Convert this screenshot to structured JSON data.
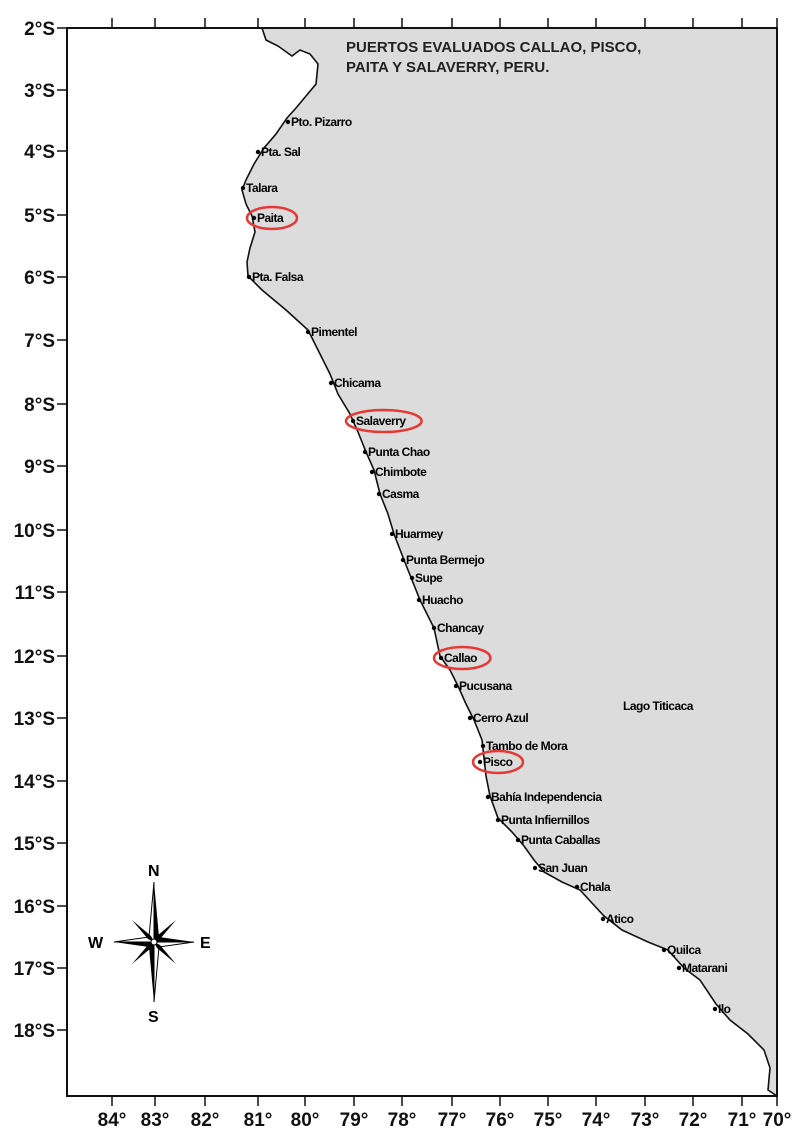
{
  "map": {
    "title_lines": [
      "PUERTOS EVALUADOS CALLAO, PISCO,",
      "PAITA Y SALAVERRY, PERU."
    ],
    "lat_labels": [
      "2°S",
      "3°S",
      "4°S",
      "5°S",
      "6°S",
      "7°S",
      "8°S",
      "9°S",
      "10°S",
      "11°S",
      "12°S",
      "13°S",
      "14°S",
      "15°S",
      "16°S",
      "17°S",
      "18°S"
    ],
    "lon_labels": [
      "84°",
      "83°",
      "82°",
      "81°",
      "80°",
      "79°",
      "78°",
      "77°",
      "76°",
      "75°",
      "74°",
      "73°",
      "72°",
      "71°",
      "70°"
    ],
    "ports": [
      {
        "name": "Pto. Pizarro",
        "highlighted": false
      },
      {
        "name": "Pta. Sal",
        "highlighted": false
      },
      {
        "name": "Talara",
        "highlighted": false
      },
      {
        "name": "Paita",
        "highlighted": true
      },
      {
        "name": "Pta. Falsa",
        "highlighted": false
      },
      {
        "name": "Pimentel",
        "highlighted": false
      },
      {
        "name": "Chicama",
        "highlighted": false
      },
      {
        "name": "Salaverry",
        "highlighted": true
      },
      {
        "name": "Punta Chao",
        "highlighted": false
      },
      {
        "name": "Chimbote",
        "highlighted": false
      },
      {
        "name": "Casma",
        "highlighted": false
      },
      {
        "name": "Huarmey",
        "highlighted": false
      },
      {
        "name": "Punta Bermejo",
        "highlighted": false
      },
      {
        "name": "Supe",
        "highlighted": false
      },
      {
        "name": "Huacho",
        "highlighted": false
      },
      {
        "name": "Chancay",
        "highlighted": false
      },
      {
        "name": "Callao",
        "highlighted": true
      },
      {
        "name": "Pucusana",
        "highlighted": false
      },
      {
        "name": "Cerro Azul",
        "highlighted": false
      },
      {
        "name": "Tambo de Mora",
        "highlighted": false
      },
      {
        "name": "Pisco",
        "highlighted": true
      },
      {
        "name": "Bahía Independencia",
        "highlighted": false
      },
      {
        "name": "Punta Infiernillos",
        "highlighted": false
      },
      {
        "name": "Punta Caballas",
        "highlighted": false
      },
      {
        "name": "San Juan",
        "highlighted": false
      },
      {
        "name": "Chala",
        "highlighted": false
      },
      {
        "name": "Atico",
        "highlighted": false
      },
      {
        "name": "Quilca",
        "highlighted": false
      },
      {
        "name": "Matarani",
        "highlighted": false
      },
      {
        "name": "Ilo",
        "highlighted": false
      }
    ],
    "lake_label": "Lago Titicaca",
    "compass": {
      "n": "N",
      "s": "S",
      "e": "E",
      "w": "W"
    },
    "colors": {
      "land": "#dcdcdc",
      "sea": "#ffffff",
      "coastline": "#111111",
      "highlight": "#e53935"
    }
  }
}
